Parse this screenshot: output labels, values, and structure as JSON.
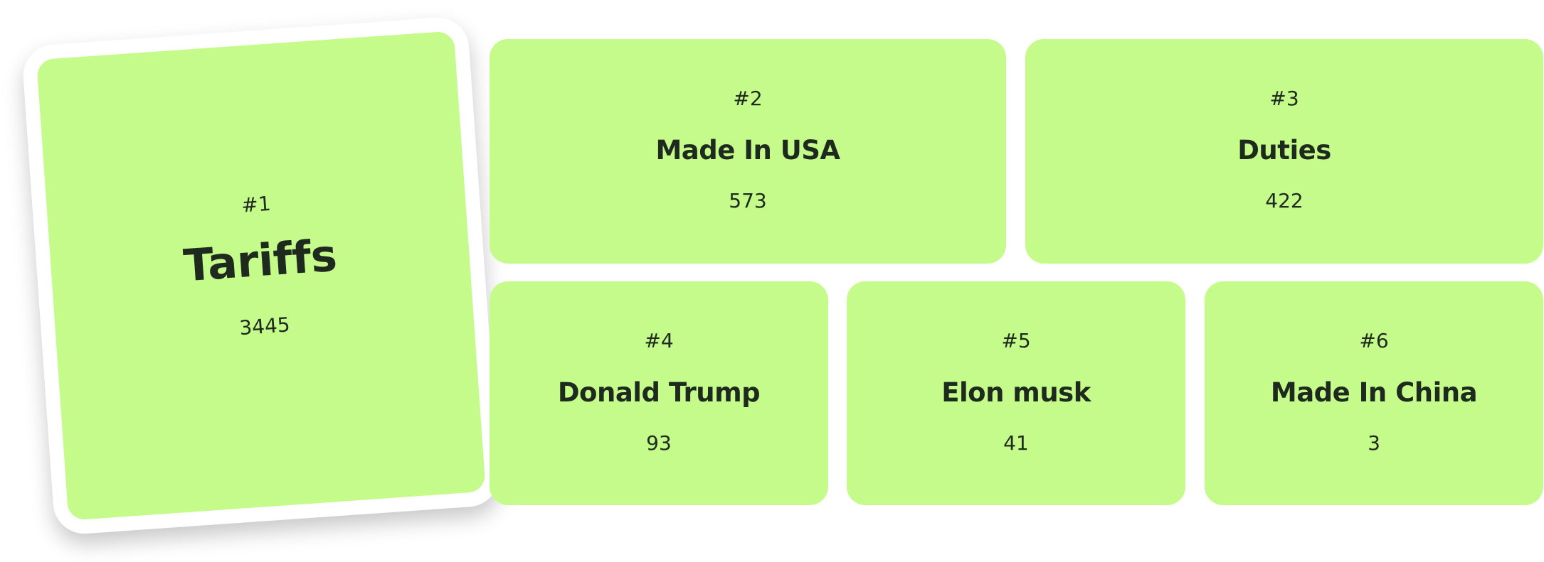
{
  "items": [
    {
      "rank": "#1",
      "name": "Tariffs",
      "count": 3445
    },
    {
      "rank": "#2",
      "name": "Made In USA",
      "count": 573
    },
    {
      "rank": "#3",
      "name": "Duties",
      "count": 422
    },
    {
      "rank": "#4",
      "name": "Donald Trump",
      "count": 93
    },
    {
      "rank": "#5",
      "name": "Elon musk",
      "count": 41
    },
    {
      "rank": "#6",
      "name": "Made In China",
      "count": 3
    }
  ]
}
